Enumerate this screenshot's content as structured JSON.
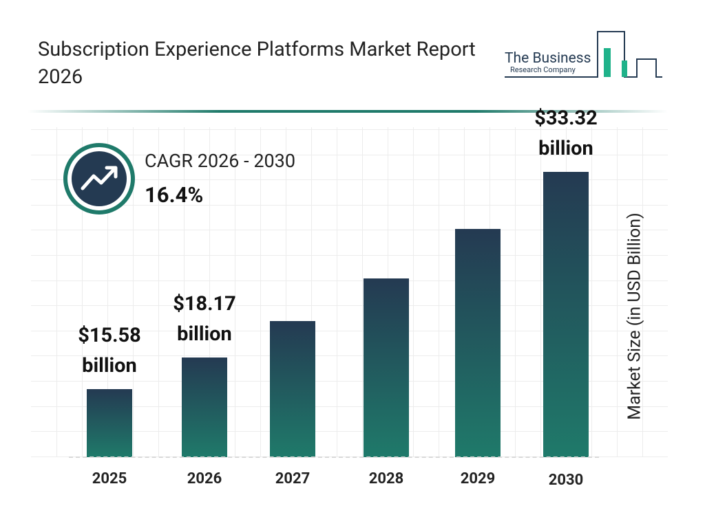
{
  "chart_data": {
    "type": "bar",
    "title": "Subscription Experience Platforms Market Report 2026",
    "brand": {
      "line1": "The Business",
      "line2": "Research Company"
    },
    "cagr_label": "CAGR 2026 - 2030",
    "cagr_value": "16.4%",
    "y_axis_label": "Market Size (in USD Billion)",
    "categories": [
      "2025",
      "2026",
      "2027",
      "2028",
      "2029",
      "2030"
    ],
    "values": [
      15.58,
      18.17,
      21.15,
      24.62,
      28.66,
      33.32
    ],
    "value_labels": [
      "$15.58 billion",
      "$18.17 billion",
      null,
      null,
      null,
      "$33.32 billion"
    ],
    "color_top": "#243a52",
    "color_bottom": "#1f7a6a",
    "ylim": [
      10,
      35
    ]
  }
}
